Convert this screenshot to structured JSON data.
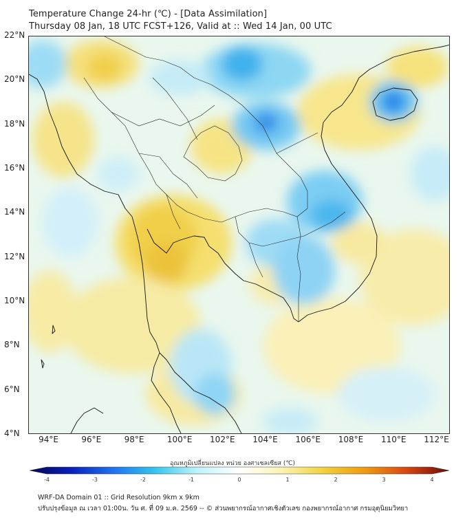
{
  "title": {
    "line1": "Temperature Change 24-hr (℃) - [Data Assimilation]",
    "line2": "Thursday 08 Jan, 18 UTC FCST+126, Valid at :: Wed 14 Jan, 00 UTC"
  },
  "map": {
    "lat_labels": [
      "22°N",
      "20°N",
      "18°N",
      "16°N",
      "14°N",
      "12°N",
      "10°N",
      "8°N",
      "6°N",
      "4°N"
    ],
    "lon_labels": [
      "94°E",
      "96°E",
      "98°E",
      "100°E",
      "102°E",
      "104°E",
      "106°E",
      "108°E",
      "110°E",
      "112°E"
    ],
    "lat_range": [
      4,
      22
    ],
    "lon_range": [
      93,
      112.7
    ]
  },
  "colorbar": {
    "title": "อุณหภูมิเปลี่ยนแปลง หน่วย องศาเซลเซียส (℃)",
    "tick_labels": [
      "-4",
      "-3",
      "-2",
      "-1",
      "0",
      "1",
      "2",
      "3",
      "4"
    ],
    "range": [
      -4,
      4
    ],
    "colors": [
      "#06064f",
      "#0a1fbf",
      "#1e73f0",
      "#35c6ee",
      "#bff4fb",
      "#ffffff",
      "#fbf4b4",
      "#f2d23a",
      "#ee9a0e",
      "#d84410",
      "#6e0a0a"
    ]
  },
  "footer": {
    "line1": "WRF-DA Domain 01 :: Grid Resolution 9km x 9km",
    "line2": "ปรับปรุงข้อมูล ณ เวลา 01:00น. วัน ศ. ที่ 09 ม.ค. 2569 -- © ส่วนพยากรณ์อากาศเชิงตัวเลข กองพยากรณ์อากาศ กรมอุตุนิยมวิทยา"
  }
}
